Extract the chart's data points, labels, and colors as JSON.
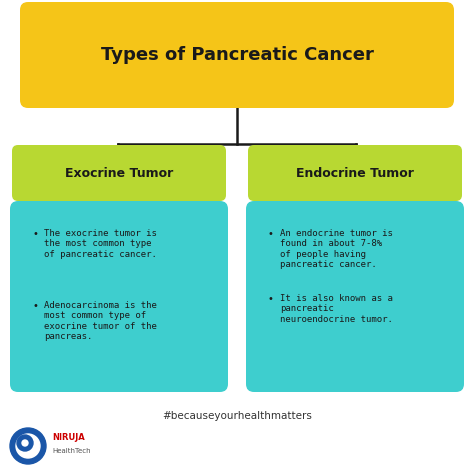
{
  "title": "Types of Pancreatic Cancer",
  "title_color": "#1a1a1a",
  "title_box_color": "#F5C518",
  "bg_color": "#ffffff",
  "left_label": "Exocrine Tumor",
  "right_label": "Endocrine Tumor",
  "label_box_color": "#B8D832",
  "label_text_color": "#1a1a1a",
  "info_box_color": "#3ECECE",
  "info_text_color": "#1a1a1a",
  "left_bullets": [
    "The exocrine tumor is\nthe most common type\nof pancreatic cancer.",
    "Adenocarcinoma is the\nmost common type of\nexocrine tumor of the\npancreas."
  ],
  "right_bullets": [
    "An endocrine tumor is\nfound in about 7-8%\nof people having\npancreatic cancer.",
    "It is also known as a\npancreatic\nneuroendocrine tumor."
  ],
  "footer_text": "#becauseyourhealthmatters",
  "line_color": "#1a1a1a",
  "title_fontsize": 13,
  "label_fontsize": 9,
  "bullet_fontsize": 6.5
}
